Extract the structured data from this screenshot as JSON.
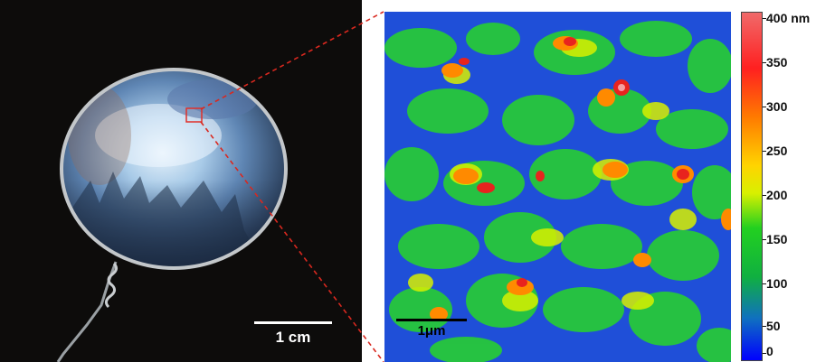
{
  "left_panel": {
    "scale_label": "1 cm"
  },
  "right_panel": {
    "scale_label": "1μm"
  },
  "colorbar": {
    "ticks": [
      "400 nm",
      "350",
      "300",
      "250",
      "200",
      "150",
      "100",
      "50",
      "0"
    ],
    "colors": [
      "#f06a6a",
      "#ff2020",
      "#ff7a00",
      "#ffd400",
      "#22d020",
      "#1070c0",
      "#0000ff"
    ]
  }
}
